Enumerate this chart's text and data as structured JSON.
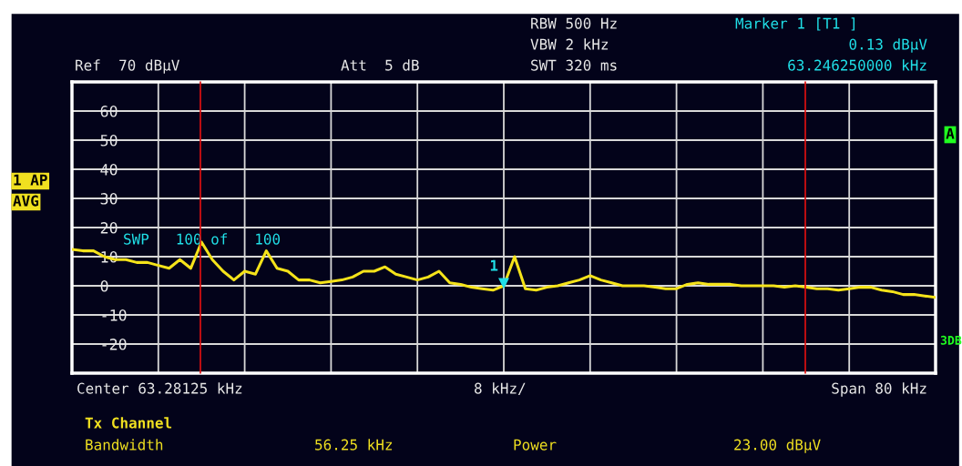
{
  "chart_data": {
    "type": "line",
    "categories": [
      null,
      null,
      null,
      null,
      null,
      null,
      null,
      null,
      null,
      null,
      null,
      null,
      null,
      null,
      null,
      null,
      null,
      null,
      null,
      null,
      null,
      null,
      null,
      null,
      null,
      null,
      null,
      null,
      null,
      null,
      null,
      null,
      null,
      null,
      null,
      null,
      null,
      null,
      null,
      null,
      null,
      null,
      null,
      null,
      null,
      null,
      null,
      null,
      null,
      null,
      null,
      null,
      null,
      null,
      null,
      null,
      null,
      null,
      null,
      null,
      null,
      null,
      null,
      null,
      null,
      null,
      null,
      null,
      null,
      null,
      null,
      null,
      null,
      null,
      null,
      null,
      null,
      null,
      null,
      null,
      null
    ],
    "series": [
      {
        "color": "#f5e31a",
        "values": [
          12.5,
          12,
          12,
          10,
          9,
          9,
          8,
          8,
          7,
          6,
          9,
          6,
          15,
          9,
          5,
          2,
          5,
          4,
          12,
          6,
          5,
          2,
          2,
          1,
          1.5,
          2,
          3,
          5,
          5,
          6.5,
          4,
          3,
          2,
          3,
          5,
          1,
          0.5,
          -0.5,
          -1,
          -1.5,
          0,
          10,
          -1,
          -1.5,
          -0.5,
          0,
          1,
          2,
          3.5,
          2,
          1,
          0,
          0,
          0,
          -0.5,
          -1,
          -1,
          0.5,
          1,
          0.5,
          0.5,
          0.5,
          0,
          0,
          0,
          0,
          -0.5,
          0,
          -0.5,
          -1,
          -1,
          -1.5,
          -1,
          -0.5,
          -0.5,
          -1.5,
          -2,
          -3,
          -3,
          -3.5,
          -4
        ]
      }
    ],
    "ylim": [
      -30,
      70
    ],
    "yticks": [
      {
        "value": -30,
        "label": null
      },
      -20,
      -10,
      0,
      10,
      20,
      30,
      40,
      50,
      60,
      {
        "value": 70,
        "label": null
      }
    ],
    "tick_labels": "y",
    "grid": true,
    "legend": false,
    "line_style": "solid",
    "marker": "none",
    "annotations": [
      "Ref  70 dBµV",
      "Att  5 dB",
      "RBW 500 Hz",
      "VBW 2 kHz",
      "SWT 320 ms",
      "Marker 1 [T1 ]",
      "0.13 dBµV",
      "63.246250000 kHz",
      "1 AP",
      "AVG",
      "A",
      "3DB",
      "SWP   100 of   100",
      "Center 63.28125 kHz",
      "8 kHz/",
      "Span 80 kHz",
      "Tx Channel",
      "Bandwidth",
      "56.25 kHz",
      "Power",
      "23.00 dBµV",
      "1"
    ]
  }
}
